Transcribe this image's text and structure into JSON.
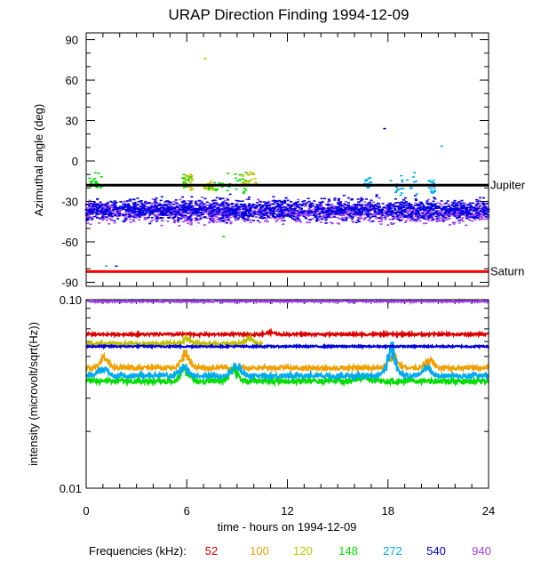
{
  "chart_data": [
    {
      "type": "scatter",
      "title": "URAP Direction Finding  1994-12-09",
      "ylabel": "Azimuthal angle (deg)",
      "xlabel": "",
      "xlim": [
        0,
        24
      ],
      "ylim": [
        -93,
        95
      ],
      "y_ticks": [
        90,
        60,
        30,
        0,
        -30,
        -60,
        -90
      ],
      "y_tick_labels": [
        "90",
        "60",
        "30",
        "0",
        "-30",
        "-60",
        "-90"
      ],
      "reference_lines": [
        {
          "label": "Jupiter",
          "y": -18,
          "color": "#000000"
        },
        {
          "label": "Saturn",
          "y": -82,
          "color": "#ff0000"
        }
      ],
      "series": [
        {
          "name": "940",
          "color": "#a040f0",
          "band": {
            "center": -38,
            "spread": 7
          },
          "x_range": [
            0,
            24
          ]
        },
        {
          "name": "540",
          "color": "#0000dd",
          "band": {
            "center": -36,
            "spread": 7
          },
          "x_range": [
            0,
            24
          ]
        },
        {
          "name": "148",
          "color": "#00dd00",
          "clusters": [
            {
              "x": [
                0.2,
                1.3
              ],
              "y": [
                -20,
                -8
              ]
            },
            {
              "x": [
                5.7,
                6.3
              ],
              "y": [
                -20,
                -10
              ]
            },
            {
              "x": [
                7.3,
                8.2
              ],
              "y": [
                -22,
                -15
              ]
            },
            {
              "x": [
                8.4,
                9.6
              ],
              "y": [
                -24,
                -8
              ]
            }
          ]
        },
        {
          "name": "120",
          "color": "#c0c000",
          "clusters": [
            {
              "x": [
                5.9,
                6.4
              ],
              "y": [
                -22,
                -10
              ]
            },
            {
              "x": [
                7.0,
                7.6
              ],
              "y": [
                -22,
                -14
              ]
            },
            {
              "x": [
                9.3,
                10.4
              ],
              "y": [
                -18,
                -8
              ]
            }
          ]
        },
        {
          "name": "272",
          "color": "#00aaee",
          "clusters": [
            {
              "x": [
                16.6,
                17.0
              ],
              "y": [
                -20,
                -12
              ]
            },
            {
              "x": [
                18.1,
                19.9
              ],
              "y": [
                -26,
                -8
              ]
            },
            {
              "x": [
                20.4,
                20.8
              ],
              "y": [
                -24,
                -14
              ]
            }
          ]
        }
      ],
      "outliers": [
        {
          "x": 7.1,
          "y": 76,
          "color": "#c0c000"
        },
        {
          "x": 17.8,
          "y": 24,
          "color": "#0000dd"
        },
        {
          "x": 21.2,
          "y": 11,
          "color": "#00aaee"
        },
        {
          "x": 1.2,
          "y": -78,
          "color": "#00aaee"
        },
        {
          "x": 1.8,
          "y": -78,
          "color": "#0000dd"
        },
        {
          "x": 8.2,
          "y": -56,
          "color": "#00dd00"
        }
      ]
    },
    {
      "type": "line",
      "title": "",
      "ylabel": "intensity (microvolt/sqrt(Hz))",
      "xlabel": "time - hours on 1994-12-09",
      "xlim": [
        0,
        24
      ],
      "ylim": [
        0.01,
        0.1
      ],
      "y_scale": "log",
      "y_ticks": [
        0.1,
        0.01
      ],
      "y_tick_labels": [
        "0.10",
        "0.01"
      ],
      "x_ticks": [
        0,
        6,
        12,
        18,
        24
      ],
      "x_tick_labels": [
        "0",
        "6",
        "12",
        "18",
        "24"
      ],
      "series": [
        {
          "name": "940",
          "color": "#a040f0",
          "level": 0.098,
          "noise": 0.01
        },
        {
          "name": "52",
          "color": "#dd0000",
          "level": 0.0655,
          "noise": 0.015,
          "bumps": [
            {
              "x": 11,
              "amp": 0.02
            }
          ]
        },
        {
          "name": "100",
          "color": "#f0a000",
          "level": 0.0435,
          "noise": 0.025,
          "bumps": [
            {
              "x": 1.1,
              "amp": 0.12
            },
            {
              "x": 5.9,
              "amp": 0.18
            },
            {
              "x": 18.3,
              "amp": 0.18
            },
            {
              "x": 20.5,
              "amp": 0.08
            }
          ]
        },
        {
          "name": "120",
          "color": "#c0c000",
          "level": 0.0585,
          "noise": 0.02,
          "bumps": [
            {
              "x": 6,
              "amp": 0.06
            },
            {
              "x": 9.7,
              "amp": 0.06
            }
          ],
          "x_range": [
            0,
            10.5
          ]
        },
        {
          "name": "148",
          "color": "#00dd00",
          "level": 0.037,
          "noise": 0.03,
          "bumps": [
            {
              "x": 5.9,
              "amp": 0.15
            },
            {
              "x": 8.8,
              "amp": 0.14
            },
            {
              "x": 16.5,
              "amp": 0.06
            }
          ]
        },
        {
          "name": "272",
          "color": "#00aaee",
          "level": 0.0395,
          "noise": 0.03,
          "bumps": [
            {
              "x": 1.0,
              "amp": 0.1
            },
            {
              "x": 5.8,
              "amp": 0.12
            },
            {
              "x": 9.0,
              "amp": 0.12
            },
            {
              "x": 18.2,
              "amp": 0.35
            },
            {
              "x": 20.3,
              "amp": 0.1
            }
          ]
        },
        {
          "name": "540",
          "color": "#0000dd",
          "level": 0.0565,
          "noise": 0.01
        }
      ]
    }
  ],
  "legend": {
    "label": "Frequencies (kHz):",
    "items": [
      {
        "name": "52",
        "color": "#dd0000"
      },
      {
        "name": "100",
        "color": "#f0a000"
      },
      {
        "name": "120",
        "color": "#c0c000"
      },
      {
        "name": "148",
        "color": "#00dd00"
      },
      {
        "name": "272",
        "color": "#00aaee"
      },
      {
        "name": "540",
        "color": "#0000dd"
      },
      {
        "name": "940",
        "color": "#a040f0"
      }
    ]
  }
}
